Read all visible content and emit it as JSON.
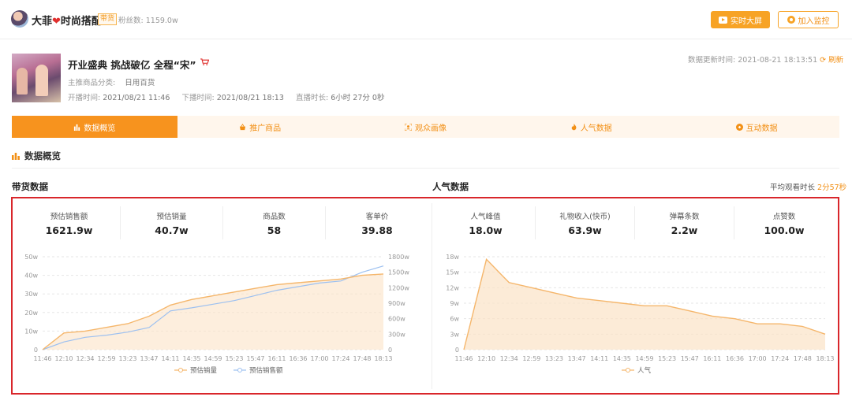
{
  "header": {
    "shop_name_a": "大菲",
    "heart": "❤",
    "shop_name_b": "时尚搭配",
    "badge": "带货",
    "fans_label": "粉丝数:",
    "fans_value": "1159.0w",
    "btn_big_screen": "实时大屏",
    "btn_monitor": "加入监控"
  },
  "live": {
    "title": "开业盛典 挑战破亿 全程“宋”",
    "category_label": "主推商品分类:",
    "category_value": "日用百货",
    "start_label": "开播时间:",
    "start_value": "2021/08/21 11:46",
    "end_label": "下播时间:",
    "end_value": "2021/08/21 18:13",
    "duration_label": "直播时长:",
    "duration_value": "6小时 27分 0秒",
    "update_label": "数据更新时间:",
    "update_value": "2021-08-21 18:13:51",
    "refresh_label": "刷新"
  },
  "tabs": [
    {
      "label": "数据概览",
      "icon": "bar-chart-icon",
      "active": true
    },
    {
      "label": "推广商品",
      "icon": "basket-icon",
      "active": false
    },
    {
      "label": "观众画像",
      "icon": "portrait-icon",
      "active": false
    },
    {
      "label": "人气数据",
      "icon": "flame-icon",
      "active": false
    },
    {
      "label": "互动数据",
      "icon": "interaction-icon",
      "active": false
    }
  ],
  "section": {
    "title": "数据概览",
    "sales_title": "带货数据",
    "pop_title": "人气数据",
    "avg_watch_label": "平均观看时长",
    "avg_watch_value": "2分57秒"
  },
  "sales_stats": [
    {
      "label": "预估销售额",
      "value": "1621.9w"
    },
    {
      "label": "预估销量",
      "value": "40.7w"
    },
    {
      "label": "商品数",
      "value": "58"
    },
    {
      "label": "客单价",
      "value": "39.88"
    }
  ],
  "pop_stats": [
    {
      "label": "人气峰值",
      "value": "18.0w"
    },
    {
      "label": "礼物收入(快币)",
      "value": "63.9w"
    },
    {
      "label": "弹幕条数",
      "value": "2.2w"
    },
    {
      "label": "点赞数",
      "value": "100.0w"
    }
  ],
  "colors": {
    "accent": "#f7931e",
    "sales_line": "#f5b66b",
    "gmv_line": "#9cc0f0",
    "frame": "#d9262b"
  },
  "chart_data": [
    {
      "type": "line",
      "title": "",
      "categories": [
        "11:46",
        "12:10",
        "12:34",
        "12:59",
        "13:23",
        "13:47",
        "14:11",
        "14:35",
        "14:59",
        "15:23",
        "15:47",
        "16:11",
        "16:36",
        "17:00",
        "17:24",
        "17:48",
        "18:13"
      ],
      "y_left_ticks": [
        "0",
        "10w",
        "20w",
        "30w",
        "40w",
        "50w"
      ],
      "y_right_ticks": [
        "0",
        "300w",
        "600w",
        "900w",
        "1200w",
        "1500w",
        "1800w"
      ],
      "ylim_left": [
        0,
        50
      ],
      "ylim_right": [
        0,
        1800
      ],
      "series": [
        {
          "name": "预估销量",
          "axis": "left",
          "unit": "w",
          "values": [
            0,
            9,
            10,
            12,
            14,
            18,
            24,
            27,
            29,
            31,
            33,
            35,
            36,
            37,
            38,
            40,
            40.7
          ]
        },
        {
          "name": "预估销售额",
          "axis": "right",
          "unit": "w",
          "values": [
            0,
            150,
            240,
            280,
            340,
            430,
            750,
            810,
            880,
            950,
            1050,
            1150,
            1220,
            1290,
            1330,
            1500,
            1621.9
          ]
        }
      ],
      "legend_position": "bottom"
    },
    {
      "type": "area",
      "title": "",
      "categories": [
        "11:46",
        "12:10",
        "12:34",
        "12:59",
        "13:23",
        "13:47",
        "14:11",
        "14:35",
        "14:59",
        "15:23",
        "15:47",
        "16:11",
        "16:36",
        "17:00",
        "17:24",
        "17:48",
        "18:13"
      ],
      "y_ticks": [
        "0",
        "3w",
        "6w",
        "9w",
        "12w",
        "15w",
        "18w"
      ],
      "ylim": [
        0,
        18
      ],
      "series": [
        {
          "name": "人气",
          "unit": "w",
          "values": [
            0,
            17.5,
            13.0,
            12.0,
            11.0,
            10.0,
            9.5,
            9.0,
            8.5,
            8.5,
            7.5,
            6.5,
            6.0,
            5.0,
            5.0,
            4.5,
            3.0
          ]
        }
      ],
      "legend_position": "bottom"
    }
  ]
}
